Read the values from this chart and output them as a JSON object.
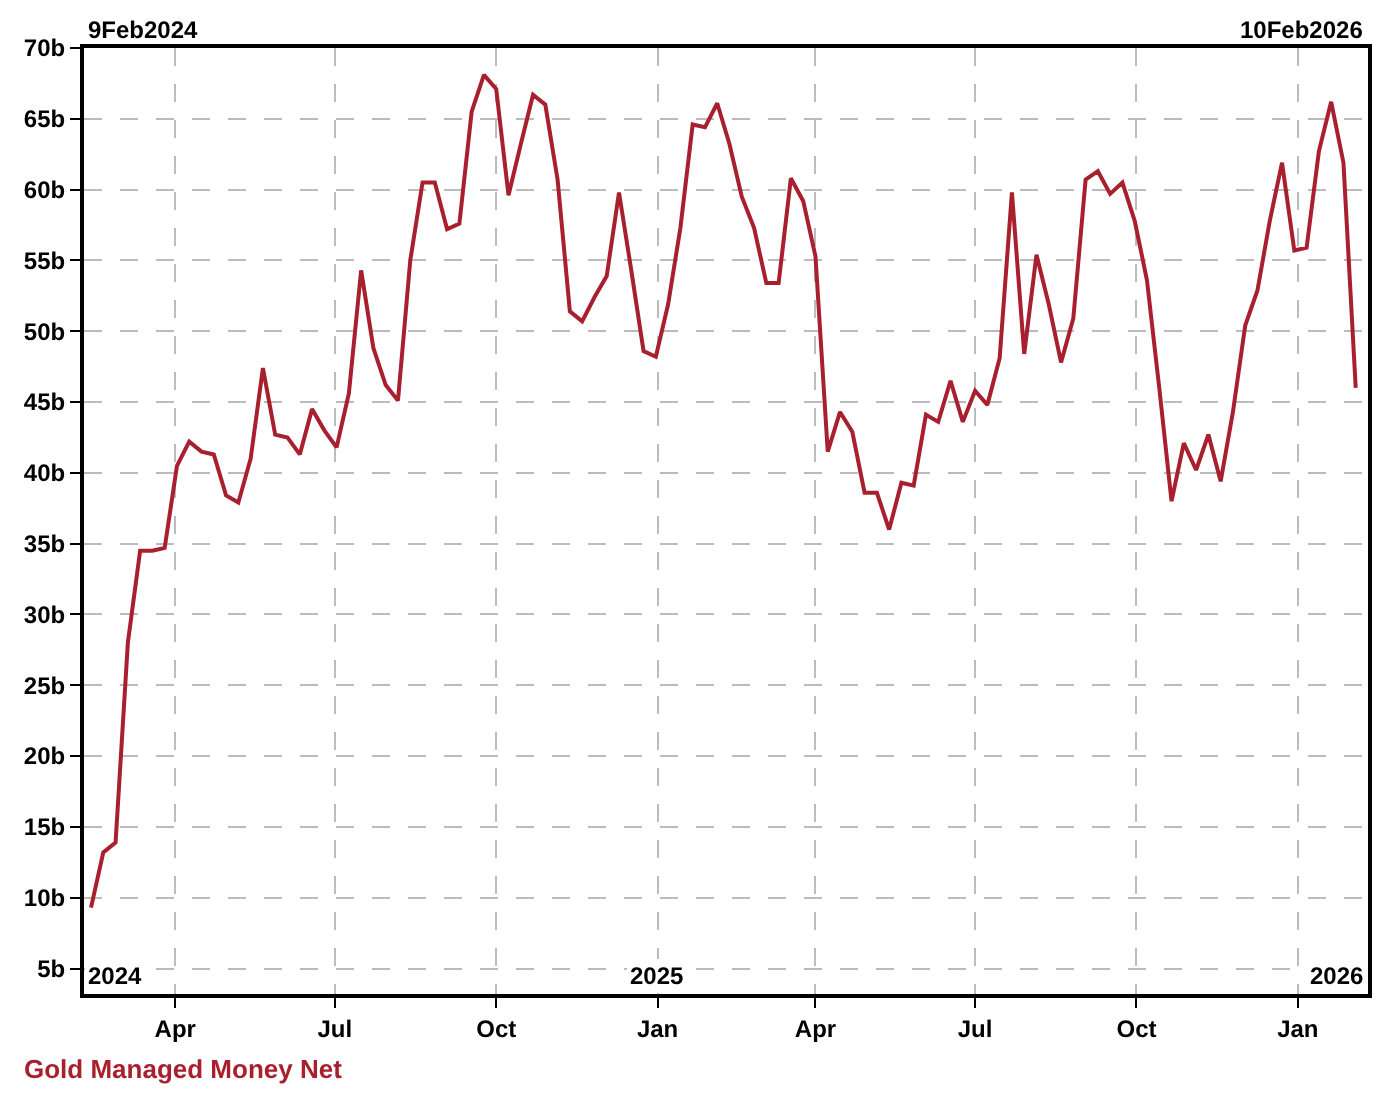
{
  "chart_data": {
    "type": "line",
    "x": [
      "2024-02-13",
      "2024-02-20",
      "2024-02-27",
      "2024-03-05",
      "2024-03-12",
      "2024-03-19",
      "2024-03-26",
      "2024-04-02",
      "2024-04-09",
      "2024-04-16",
      "2024-04-23",
      "2024-04-30",
      "2024-05-07",
      "2024-05-14",
      "2024-05-21",
      "2024-05-28",
      "2024-06-04",
      "2024-06-11",
      "2024-06-18",
      "2024-06-25",
      "2024-07-02",
      "2024-07-09",
      "2024-07-16",
      "2024-07-23",
      "2024-07-30",
      "2024-08-06",
      "2024-08-13",
      "2024-08-20",
      "2024-08-27",
      "2024-09-03",
      "2024-09-10",
      "2024-09-17",
      "2024-09-24",
      "2024-10-01",
      "2024-10-08",
      "2024-10-15",
      "2024-10-22",
      "2024-10-29",
      "2024-11-05",
      "2024-11-12",
      "2024-11-19",
      "2024-11-26",
      "2024-12-03",
      "2024-12-10",
      "2024-12-17",
      "2024-12-24",
      "2024-12-31",
      "2025-01-07",
      "2025-01-14",
      "2025-01-21",
      "2025-01-28",
      "2025-02-04",
      "2025-02-11",
      "2025-02-18",
      "2025-02-25",
      "2025-03-04",
      "2025-03-11",
      "2025-03-18",
      "2025-03-25",
      "2025-04-01",
      "2025-04-08",
      "2025-04-15",
      "2025-04-22",
      "2025-04-29",
      "2025-05-06",
      "2025-05-13",
      "2025-05-20",
      "2025-05-27",
      "2025-06-03",
      "2025-06-10",
      "2025-06-17",
      "2025-06-24",
      "2025-07-01",
      "2025-07-08",
      "2025-07-15",
      "2025-07-22",
      "2025-07-29",
      "2025-08-05",
      "2025-08-12",
      "2025-08-19",
      "2025-08-26",
      "2025-09-02",
      "2025-09-09",
      "2025-09-16",
      "2025-09-23",
      "2025-09-30",
      "2025-10-07",
      "2025-10-14",
      "2025-10-21",
      "2025-10-28",
      "2025-11-04",
      "2025-11-11",
      "2025-11-18",
      "2025-11-25",
      "2025-12-02",
      "2025-12-09",
      "2025-12-16",
      "2025-12-23",
      "2025-12-30",
      "2026-01-06",
      "2026-01-13",
      "2026-01-20",
      "2026-01-27",
      "2026-02-03"
    ],
    "series": [
      {
        "name": "Gold Managed Money Net",
        "color": "#a8202e",
        "values": [
          9.3,
          13.2,
          13.9,
          28,
          34.5,
          34.5,
          34.7,
          40.5,
          42.2,
          41.5,
          41.3,
          38.4,
          37.9,
          41,
          47.4,
          42.7,
          42.5,
          41.3,
          44.5,
          43,
          41.8,
          45.6,
          54.3,
          48.8,
          46.2,
          45.1,
          55,
          60.5,
          60.5,
          57.2,
          57.6,
          65.5,
          68.1,
          67.1,
          59.6,
          63.2,
          66.7,
          66,
          60.7,
          51.4,
          50.7,
          52.4,
          53.9,
          59.8,
          54.3,
          48.6,
          48.2,
          51.9,
          57.3,
          64.6,
          64.4,
          66.1,
          63.2,
          59.5,
          57.3,
          53.4,
          53.4,
          60.8,
          59.2,
          55.3,
          41.5,
          44.3,
          42.9,
          38.6,
          38.6,
          36,
          39.3,
          39.1,
          44.1,
          43.6,
          46.5,
          43.6,
          45.8,
          44.8,
          48.1,
          59.8,
          48.4,
          55.4,
          51.9,
          47.8,
          50.9,
          60.7,
          61.3,
          59.7,
          60.5,
          57.8,
          53.6,
          46,
          38,
          42.1,
          40.2,
          42.7,
          39.4,
          44.3,
          50.4,
          52.9,
          57.8,
          61.9,
          55.7,
          55.9,
          62.7,
          66.2,
          61.9,
          46
        ]
      }
    ],
    "xlim": [
      "2024-02-09",
      "2026-02-10"
    ],
    "xticks": [
      {
        "value": "2024-04-01",
        "label": "Apr"
      },
      {
        "value": "2024-07-01",
        "label": "Jul"
      },
      {
        "value": "2024-10-01",
        "label": "Oct"
      },
      {
        "value": "2025-01-01",
        "label": "Jan"
      },
      {
        "value": "2025-04-01",
        "label": "Apr"
      },
      {
        "value": "2025-07-01",
        "label": "Jul"
      },
      {
        "value": "2025-10-01",
        "label": "Oct"
      },
      {
        "value": "2026-01-01",
        "label": "Jan"
      }
    ],
    "ylim": [
      3.2,
      70
    ],
    "yticks": [
      {
        "value": 5,
        "label": "5b"
      },
      {
        "value": 10,
        "label": "10b"
      },
      {
        "value": 15,
        "label": "15b"
      },
      {
        "value": 20,
        "label": "20b"
      },
      {
        "value": 25,
        "label": "25b"
      },
      {
        "value": 30,
        "label": "30b"
      },
      {
        "value": 35,
        "label": "35b"
      },
      {
        "value": 40,
        "label": "40b"
      },
      {
        "value": 45,
        "label": "45b"
      },
      {
        "value": 50,
        "label": "50b"
      },
      {
        "value": 55,
        "label": "55b"
      },
      {
        "value": 60,
        "label": "60b"
      },
      {
        "value": 65,
        "label": "65b"
      },
      {
        "value": 70,
        "label": "70b"
      }
    ],
    "annotations": [
      "9Feb2024",
      "10Feb2026",
      "2024",
      {
        "text": "2025",
        "x": "2025-01-01"
      },
      "2026"
    ],
    "grid": true,
    "line_style": "solid",
    "marker": "none",
    "legend": false
  }
}
